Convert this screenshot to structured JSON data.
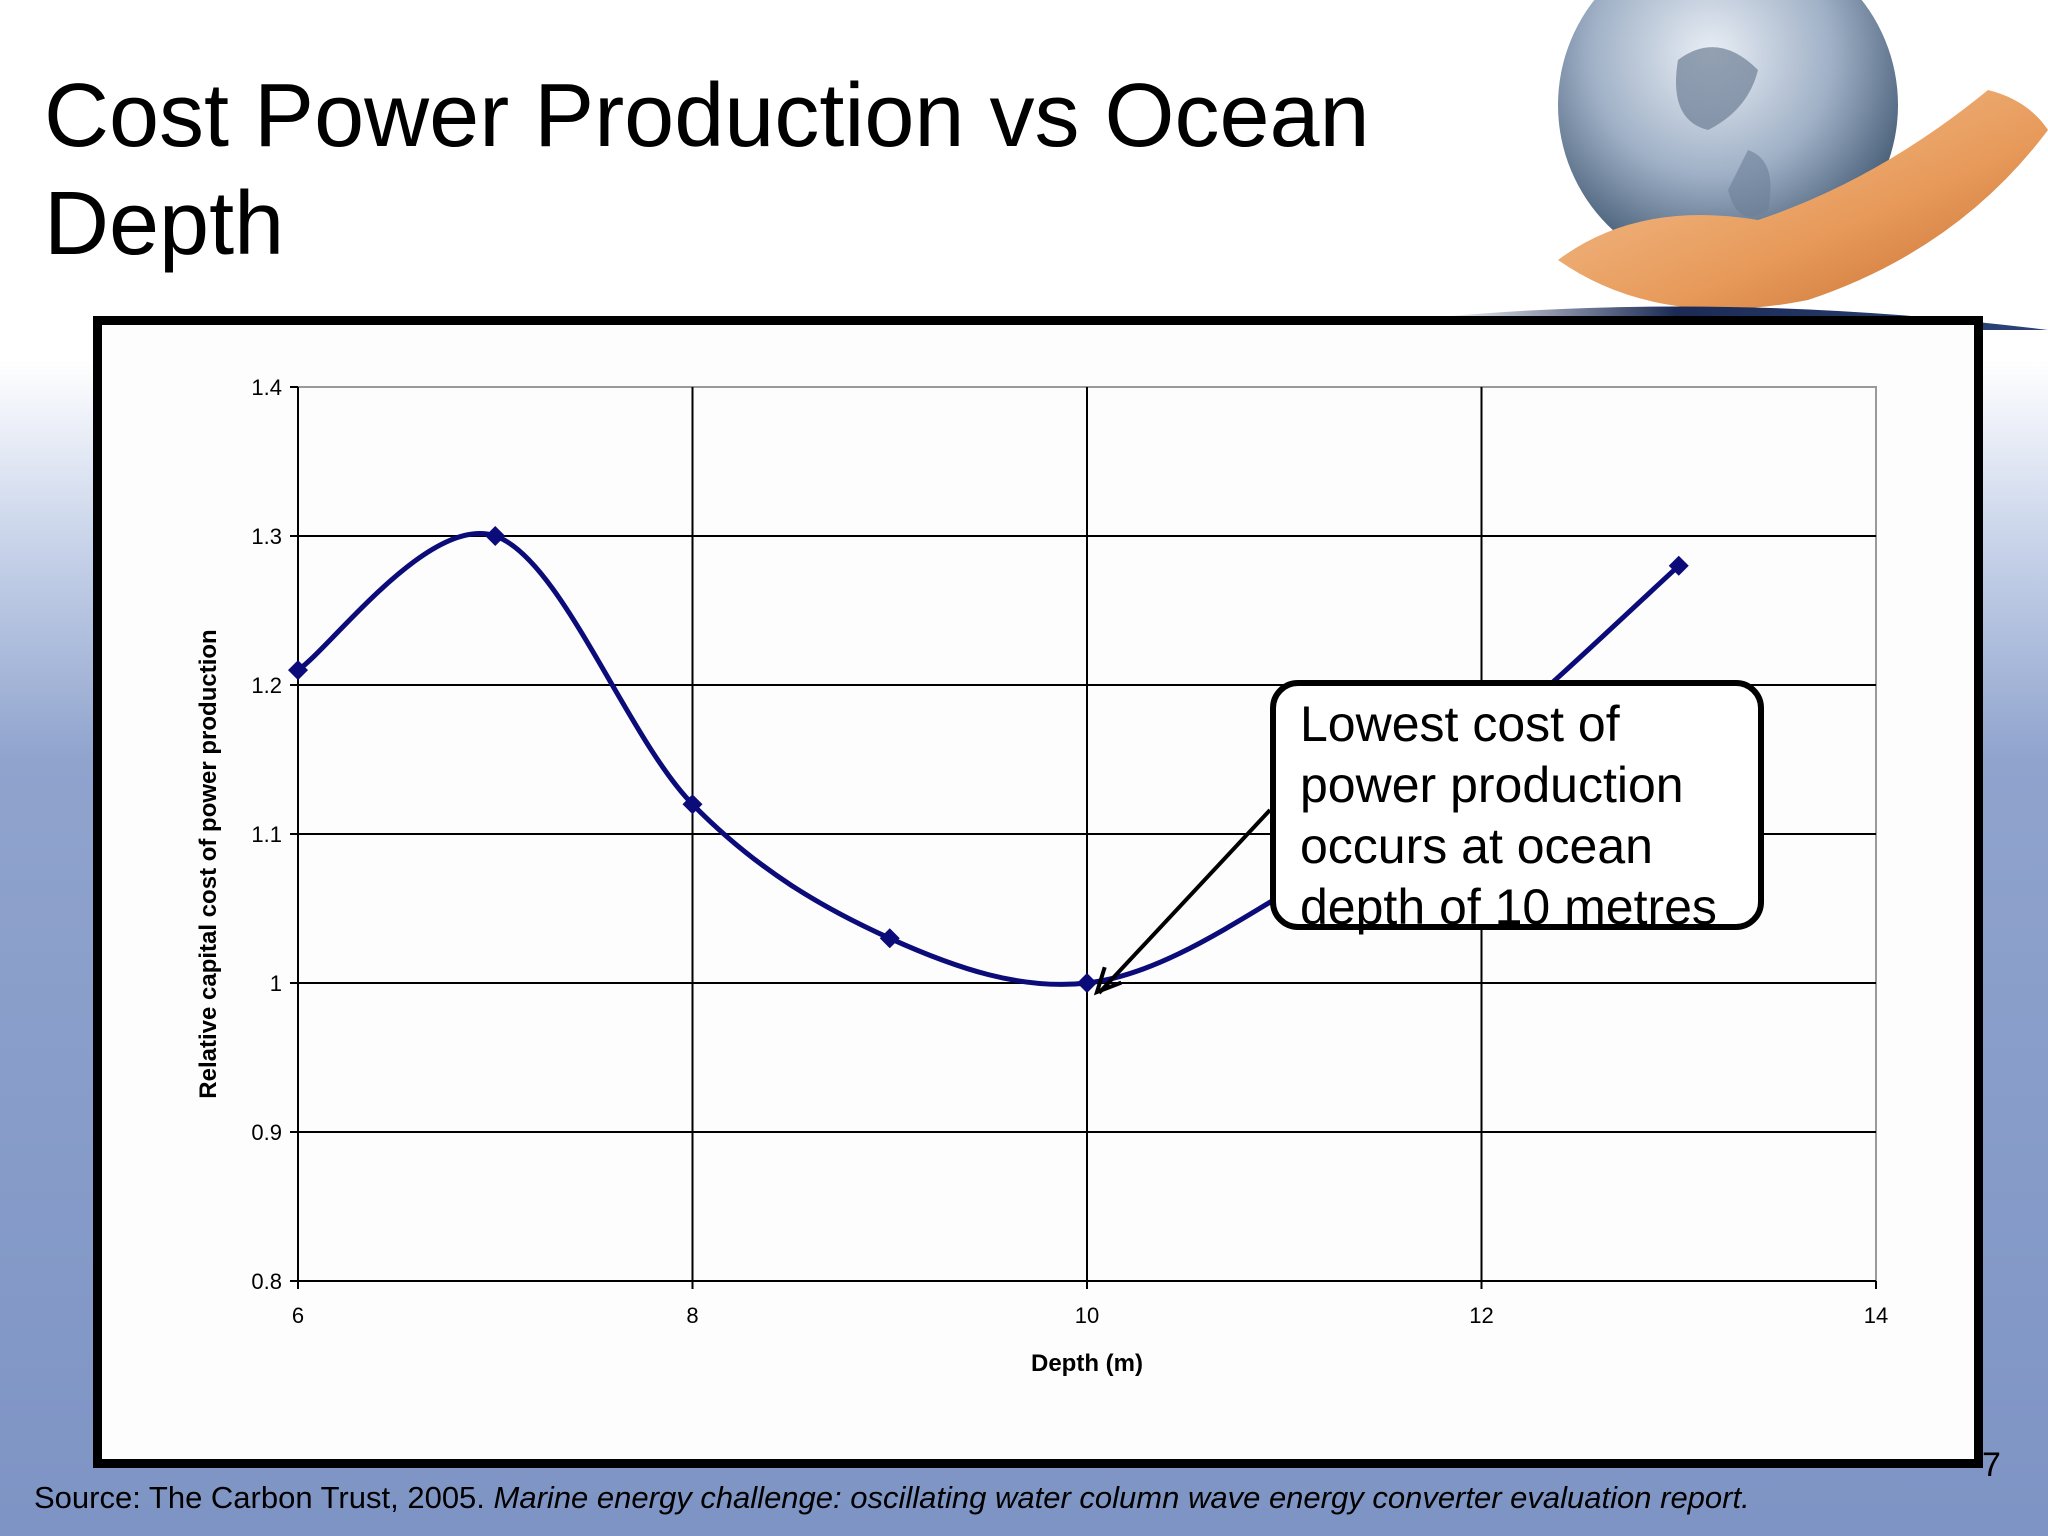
{
  "slide": {
    "title": "Cost Power Production vs Ocean Depth",
    "page_number": "7",
    "source_prefix": "Source: The Carbon Trust, 2005.",
    "source_title": "Marine energy challenge: oscillating water column wave energy converter evaluation report."
  },
  "colors": {
    "series": "#0b0b7a",
    "grid": "#000000",
    "frame": "#000000"
  },
  "chart_data": {
    "type": "line",
    "xlabel": "Depth (m)",
    "ylabel": "Relative capital cost of power production",
    "xlim": [
      6,
      14
    ],
    "ylim": [
      0.8,
      1.4
    ],
    "x_ticks": [
      "6",
      "8",
      "10",
      "12",
      "14"
    ],
    "y_ticks": [
      "0.8",
      "0.9",
      "1",
      "1.1",
      "1.2",
      "1.3",
      "1.4"
    ],
    "x_tick_values": [
      6,
      8,
      10,
      12,
      14
    ],
    "y_tick_values": [
      0.8,
      0.9,
      1.0,
      1.1,
      1.2,
      1.3,
      1.4
    ],
    "grid": true,
    "smooth": true,
    "marker": "diamond",
    "series": [
      {
        "x": [
          6,
          7,
          8,
          9,
          10,
          11,
          12,
          13
        ],
        "y": [
          1.21,
          1.3,
          1.12,
          1.03,
          1.0,
          1.06,
          1.16,
          1.28
        ]
      }
    ],
    "annotation": {
      "text": "Lowest cost of power production occurs at ocean depth of 10 metres",
      "lines": [
        "Lowest cost of",
        "power production",
        "occurs at ocean",
        "depth of 10 metres"
      ],
      "points_to": {
        "x": 10,
        "y": 1.0
      }
    }
  }
}
